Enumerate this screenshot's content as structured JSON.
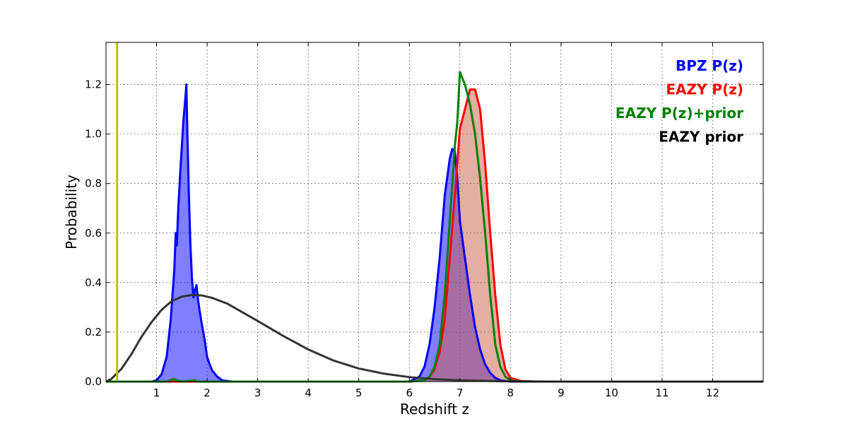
{
  "chart_data": {
    "type": "line",
    "title": "",
    "xlabel": "Redshift z",
    "ylabel": "Probability",
    "xlim": [
      0,
      13
    ],
    "ylim": [
      0,
      1.37
    ],
    "xticks": [
      1,
      2,
      3,
      4,
      5,
      6,
      7,
      8,
      9,
      10,
      11,
      12
    ],
    "yticks": [
      0.0,
      0.2,
      0.4,
      0.6,
      0.8,
      1.0,
      1.2
    ],
    "xtick_labels": [
      "1",
      "2",
      "3",
      "4",
      "5",
      "6",
      "7",
      "8",
      "9",
      "10",
      "11",
      "12"
    ],
    "ytick_labels": [
      "0.0",
      "0.2",
      "0.4",
      "0.6",
      "0.8",
      "1.0",
      "1.2"
    ],
    "grid": true,
    "legend_position": "top-right",
    "vline": {
      "x": 0.22,
      "color": "#bfbf00"
    },
    "series": [
      {
        "name": "BPZ P(z)",
        "color": "#0000ff",
        "fill": "#0000ff",
        "fill_opacity": 0.5,
        "points": [
          [
            0,
            0
          ],
          [
            0.9,
            0
          ],
          [
            1.0,
            0.005
          ],
          [
            1.1,
            0.03
          ],
          [
            1.2,
            0.1
          ],
          [
            1.28,
            0.25
          ],
          [
            1.35,
            0.45
          ],
          [
            1.38,
            0.6
          ],
          [
            1.4,
            0.55
          ],
          [
            1.43,
            0.7
          ],
          [
            1.47,
            0.85
          ],
          [
            1.5,
            0.95
          ],
          [
            1.53,
            1.05
          ],
          [
            1.56,
            1.12
          ],
          [
            1.59,
            1.2
          ],
          [
            1.61,
            1.0
          ],
          [
            1.64,
            0.75
          ],
          [
            1.67,
            0.55
          ],
          [
            1.7,
            0.42
          ],
          [
            1.73,
            0.34
          ],
          [
            1.76,
            0.37
          ],
          [
            1.79,
            0.39
          ],
          [
            1.82,
            0.33
          ],
          [
            1.88,
            0.25
          ],
          [
            1.95,
            0.17
          ],
          [
            2.0,
            0.1
          ],
          [
            2.05,
            0.07
          ],
          [
            2.1,
            0.045
          ],
          [
            2.2,
            0.02
          ],
          [
            2.3,
            0.005
          ],
          [
            2.5,
            0
          ],
          [
            6.0,
            0
          ],
          [
            6.2,
            0.02
          ],
          [
            6.3,
            0.06
          ],
          [
            6.4,
            0.15
          ],
          [
            6.5,
            0.3
          ],
          [
            6.6,
            0.5
          ],
          [
            6.7,
            0.75
          ],
          [
            6.8,
            0.9
          ],
          [
            6.85,
            0.94
          ],
          [
            6.9,
            0.93
          ],
          [
            6.95,
            0.82
          ],
          [
            7.0,
            0.65
          ],
          [
            7.1,
            0.5
          ],
          [
            7.2,
            0.35
          ],
          [
            7.3,
            0.22
          ],
          [
            7.4,
            0.13
          ],
          [
            7.5,
            0.07
          ],
          [
            7.6,
            0.035
          ],
          [
            7.7,
            0.015
          ],
          [
            7.8,
            0.005
          ],
          [
            8.0,
            0
          ],
          [
            13,
            0
          ]
        ]
      },
      {
        "name": "EAZY P(z)",
        "color": "#ff0000",
        "fill": "#cd5c45",
        "fill_opacity": 0.5,
        "points": [
          [
            0,
            0
          ],
          [
            6.0,
            0
          ],
          [
            6.3,
            0.005
          ],
          [
            6.4,
            0.02
          ],
          [
            6.5,
            0.05
          ],
          [
            6.6,
            0.12
          ],
          [
            6.7,
            0.25
          ],
          [
            6.8,
            0.5
          ],
          [
            6.9,
            0.75
          ],
          [
            7.0,
            1.02
          ],
          [
            7.1,
            1.1
          ],
          [
            7.2,
            1.18
          ],
          [
            7.3,
            1.18
          ],
          [
            7.4,
            1.1
          ],
          [
            7.5,
            0.88
          ],
          [
            7.6,
            0.6
          ],
          [
            7.7,
            0.35
          ],
          [
            7.8,
            0.15
          ],
          [
            7.9,
            0.05
          ],
          [
            8.0,
            0.015
          ],
          [
            8.2,
            0.003
          ],
          [
            8.5,
            0
          ],
          [
            13,
            0
          ]
        ]
      },
      {
        "name": "EAZY P(z)+prior",
        "color": "#008000",
        "fill": "none",
        "fill_opacity": 0,
        "points": [
          [
            0,
            0
          ],
          [
            1.2,
            0
          ],
          [
            1.3,
            0.008
          ],
          [
            1.35,
            0.01
          ],
          [
            1.4,
            0.005
          ],
          [
            1.5,
            0
          ],
          [
            1.75,
            0.005
          ],
          [
            1.8,
            0
          ],
          [
            6.0,
            0
          ],
          [
            6.3,
            0.005
          ],
          [
            6.4,
            0.02
          ],
          [
            6.5,
            0.06
          ],
          [
            6.6,
            0.15
          ],
          [
            6.7,
            0.35
          ],
          [
            6.8,
            0.65
          ],
          [
            6.9,
            0.95
          ],
          [
            6.95,
            1.05
          ],
          [
            7.0,
            1.25
          ],
          [
            7.1,
            1.2
          ],
          [
            7.2,
            1.12
          ],
          [
            7.3,
            1.0
          ],
          [
            7.4,
            0.82
          ],
          [
            7.5,
            0.6
          ],
          [
            7.6,
            0.35
          ],
          [
            7.7,
            0.15
          ],
          [
            7.8,
            0.06
          ],
          [
            7.9,
            0.02
          ],
          [
            8.0,
            0.005
          ],
          [
            8.2,
            0
          ],
          [
            13,
            0
          ]
        ]
      },
      {
        "name": "EAZY prior",
        "color": "#333333",
        "fill": "none",
        "fill_opacity": 0,
        "points": [
          [
            0,
            0
          ],
          [
            0.1,
            0.01
          ],
          [
            0.3,
            0.05
          ],
          [
            0.5,
            0.11
          ],
          [
            0.7,
            0.18
          ],
          [
            0.9,
            0.24
          ],
          [
            1.1,
            0.29
          ],
          [
            1.3,
            0.325
          ],
          [
            1.5,
            0.343
          ],
          [
            1.7,
            0.35
          ],
          [
            1.9,
            0.348
          ],
          [
            2.1,
            0.338
          ],
          [
            2.4,
            0.315
          ],
          [
            2.7,
            0.28
          ],
          [
            3.0,
            0.245
          ],
          [
            3.5,
            0.185
          ],
          [
            4.0,
            0.13
          ],
          [
            4.5,
            0.085
          ],
          [
            5.0,
            0.053
          ],
          [
            5.5,
            0.032
          ],
          [
            6.0,
            0.018
          ],
          [
            6.5,
            0.01
          ],
          [
            7.0,
            0.005
          ],
          [
            8.0,
            0.001
          ],
          [
            9.0,
            0
          ],
          [
            13,
            0
          ]
        ]
      }
    ]
  }
}
